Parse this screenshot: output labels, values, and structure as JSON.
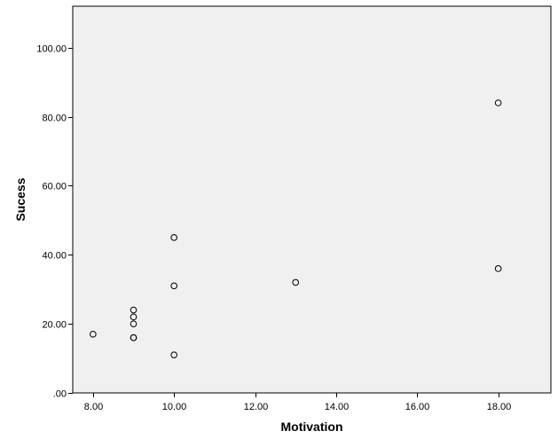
{
  "chart_data": {
    "type": "scatter",
    "xlabel": "Motivation",
    "ylabel": "Sucess",
    "xlim": [
      7.5,
      19.3
    ],
    "ylim": [
      0,
      112
    ],
    "x_ticks": [
      8,
      10,
      12,
      14,
      16,
      18
    ],
    "x_tick_labels": [
      "8.00",
      "10.00",
      "12.00",
      "14.00",
      "16.00",
      "18.00"
    ],
    "y_ticks": [
      0,
      20,
      40,
      60,
      80,
      100
    ],
    "y_tick_labels": [
      ".00",
      "20.00",
      "40.00",
      "60.00",
      "80.00",
      "100.00"
    ],
    "grid": false,
    "colors": {
      "plot_background": "#f0f0f0",
      "marker_stroke": "#000000",
      "axis": "#000000"
    },
    "series": [
      {
        "points": [
          {
            "x": 8,
            "y": 17
          },
          {
            "x": 9,
            "y": 24
          },
          {
            "x": 9,
            "y": 22
          },
          {
            "x": 9,
            "y": 20
          },
          {
            "x": 9,
            "y": 16
          },
          {
            "x": 9,
            "y": 16
          },
          {
            "x": 10,
            "y": 45
          },
          {
            "x": 10,
            "y": 31
          },
          {
            "x": 10,
            "y": 11
          },
          {
            "x": 13,
            "y": 32
          },
          {
            "x": 18,
            "y": 84
          },
          {
            "x": 18,
            "y": 36
          }
        ]
      }
    ]
  }
}
